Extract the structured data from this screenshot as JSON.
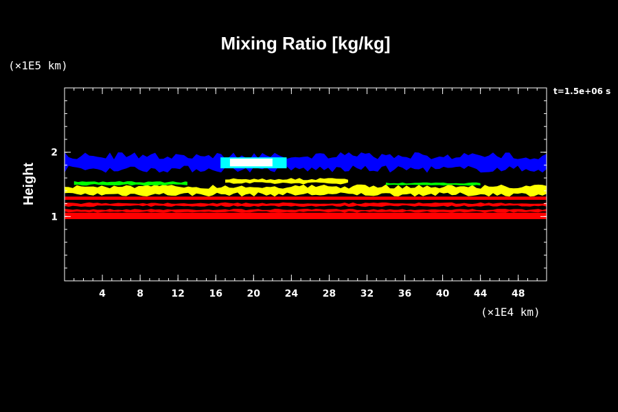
{
  "chart_data": {
    "type": "heatmap",
    "title": "Mixing Ratio [kg/kg]",
    "xlabel": "",
    "ylabel": "Height",
    "x_unit": "(×1E4 km)",
    "y_unit": "(×1E5 km)",
    "time_label": "t=1.5e+06 s",
    "xlim": [
      0,
      51
    ],
    "ylim": [
      0,
      3
    ],
    "x_ticks": [
      4,
      8,
      12,
      16,
      20,
      24,
      28,
      32,
      36,
      40,
      44,
      48
    ],
    "y_ticks": [
      1,
      2
    ],
    "x_minor_step": 1,
    "y_minor_step": 0.2,
    "background": "#000000",
    "layers": [
      {
        "color": "#ff0000",
        "label": "",
        "bands": [
          {
            "x": [
              0,
              51
            ],
            "y": [
              0.96,
              1.06
            ]
          },
          {
            "x": [
              0,
              51
            ],
            "y": [
              1.06,
              1.12
            ],
            "patchy": true
          },
          {
            "x": [
              0,
              51
            ],
            "y": [
              1.15,
              1.22
            ],
            "patchy": true
          },
          {
            "x": [
              0,
              51
            ],
            "y": [
              1.26,
              1.31
            ]
          }
        ]
      },
      {
        "color": "#ffff00",
        "label": "",
        "bands": [
          {
            "x": [
              0,
              51
            ],
            "y": [
              1.31,
              1.5
            ],
            "patchy": true
          },
          {
            "x": [
              17,
              30
            ],
            "y": [
              1.5,
              1.6
            ],
            "patchy": true
          }
        ]
      },
      {
        "color": "#00ff00",
        "label": "",
        "bands": [
          {
            "x": [
              1,
              13
            ],
            "y": [
              1.48,
              1.55
            ],
            "patchy": true
          },
          {
            "x": [
              34,
              44
            ],
            "y": [
              1.48,
              1.53
            ],
            "patchy": true
          }
        ]
      },
      {
        "color": "#0000ff",
        "label": "",
        "bands": [
          {
            "x": [
              0,
              51
            ],
            "y": [
              1.68,
              2.0
            ],
            "patchy": true
          }
        ]
      },
      {
        "color": "#00ffff",
        "label": "",
        "bands": [
          {
            "x": [
              16.5,
              23.5
            ],
            "y": [
              1.75,
              1.92
            ]
          }
        ]
      },
      {
        "color": "#ffffff",
        "label": "",
        "bands": [
          {
            "x": [
              17.5,
              22
            ],
            "y": [
              1.78,
              1.9
            ]
          }
        ]
      }
    ]
  }
}
